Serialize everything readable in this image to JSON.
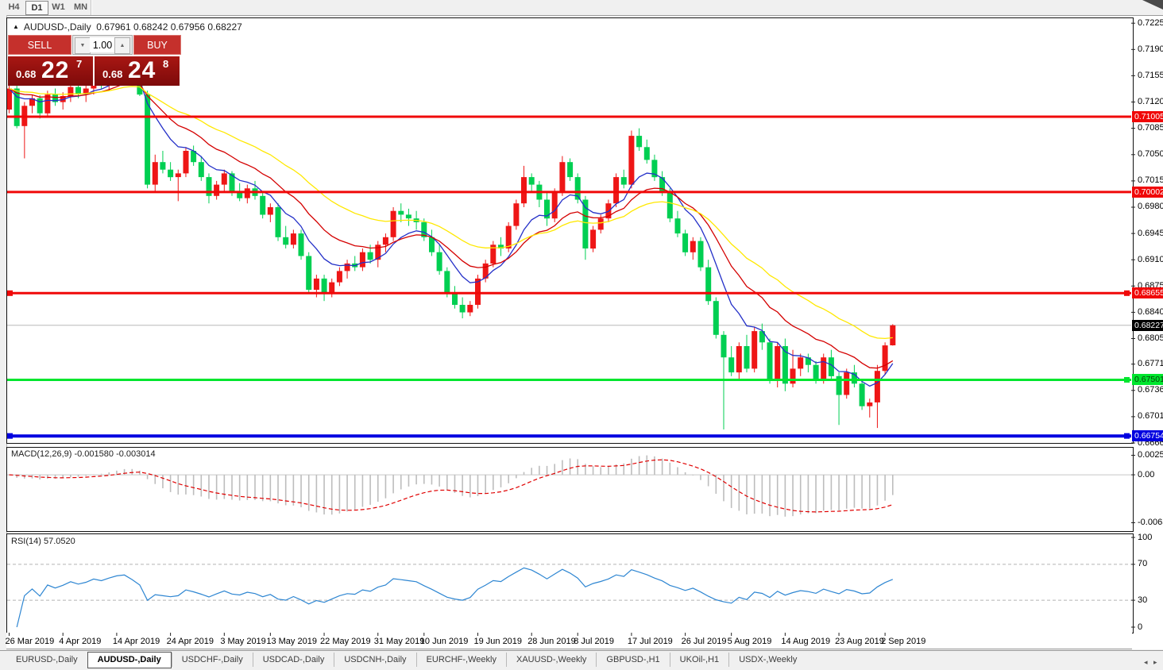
{
  "toolbar": {
    "timeframes": [
      "H4",
      "D1",
      "W1",
      "MN"
    ],
    "active": "D1"
  },
  "title": {
    "collapse_icon": "▲",
    "symbol_period": "AUDUSD-,Daily",
    "ohlc": "0.67961 0.68242 0.67956 0.68227"
  },
  "trade_panel": {
    "sell_label": "SELL",
    "buy_label": "BUY",
    "volume": "1.00",
    "spin_down_icon": "▼",
    "spin_up_icon": "▲",
    "sell_price": {
      "prefix": "0.68",
      "big": "22",
      "sup": "7"
    },
    "buy_price": {
      "prefix": "0.68",
      "big": "24",
      "sup": "8"
    }
  },
  "indicator_labels": {
    "macd": "MACD(12,26,9) -0.001580 -0.003014",
    "rsi": "RSI(14) 57.0520"
  },
  "price_axis": {
    "ticks": [
      0.7225,
      0.719,
      0.7155,
      0.712,
      0.7085,
      0.705,
      0.7015,
      0.698,
      0.6945,
      0.691,
      0.6875,
      0.684,
      0.6805,
      0.6771,
      0.6736,
      0.6701,
      0.6666
    ]
  },
  "macd_axis": {
    "ticks": [
      {
        "label": "0.002574",
        "value": 0.002574
      },
      {
        "label": "0.00",
        "value": 0
      },
      {
        "label": "-0.006326",
        "value": -0.006326
      }
    ]
  },
  "rsi_axis": {
    "ticks": [
      {
        "label": "100",
        "value": 100
      },
      {
        "label": "70",
        "value": 70
      },
      {
        "label": "30",
        "value": 30
      },
      {
        "label": "0",
        "value": 0
      }
    ]
  },
  "date_axis": {
    "labels": [
      {
        "text": "26 Mar 2019",
        "candle": 0
      },
      {
        "text": "4 Apr 2019",
        "candle": 7
      },
      {
        "text": "14 Apr 2019",
        "candle": 14
      },
      {
        "text": "24 Apr 2019",
        "candle": 21
      },
      {
        "text": "3 May 2019",
        "candle": 28
      },
      {
        "text": "13 May 2019",
        "candle": 34
      },
      {
        "text": "22 May 2019",
        "candle": 41
      },
      {
        "text": "31 May 2019",
        "candle": 48
      },
      {
        "text": "10 Jun 2019",
        "candle": 54
      },
      {
        "text": "19 Jun 2019",
        "candle": 61
      },
      {
        "text": "28 Jun 2019",
        "candle": 68
      },
      {
        "text": "8 Jul 2019",
        "candle": 74
      },
      {
        "text": "17 Jul 2019",
        "candle": 81
      },
      {
        "text": "26 Jul 2019",
        "candle": 88
      },
      {
        "text": "5 Aug 2019",
        "candle": 94
      },
      {
        "text": "14 Aug 2019",
        "candle": 101
      },
      {
        "text": "23 Aug 2019",
        "candle": 108
      },
      {
        "text": "2 Sep 2019",
        "candle": 114
      }
    ]
  },
  "levels": {
    "hlines": [
      {
        "label": "0.71005",
        "value": 0.71005,
        "color": "#f00808",
        "badge_bg": "#f00808",
        "badge_fg": "#ffffff",
        "width": 3,
        "handles": []
      },
      {
        "label": "0.70002",
        "value": 0.70002,
        "color": "#f00808",
        "badge_bg": "#f00808",
        "badge_fg": "#ffffff",
        "width": 3,
        "handles": []
      },
      {
        "label": "0.68655",
        "value": 0.68655,
        "color": "#f00808",
        "badge_bg": "#f00808",
        "badge_fg": "#ffffff",
        "width": 3,
        "handles": [
          "left",
          "right"
        ]
      },
      {
        "label": "0.67501",
        "value": 0.67501,
        "color": "#00e62e",
        "badge_bg": "#00e62e",
        "badge_fg": "#063e06",
        "width": 3,
        "handles": [
          "right"
        ]
      },
      {
        "label": "0.66754",
        "value": 0.66754,
        "color": "#0000e0",
        "badge_bg": "#0000e0",
        "badge_fg": "#ffffff",
        "width": 4,
        "handles": [
          "left",
          "right"
        ]
      }
    ],
    "current_price": {
      "label": "0.68227",
      "value": 0.68227,
      "line_color": "#b8b8b8",
      "badge_bg": "#000000",
      "badge_fg": "#ffffff"
    }
  },
  "tabs": {
    "items": [
      "EURUSD-,Daily",
      "AUDUSD-,Daily",
      "USDCHF-,Daily",
      "USDCAD-,Daily",
      "USDCNH-,Daily",
      "EURCHF-,Weekly",
      "XAUUSD-,Weekly",
      "GBPUSD-,H1",
      "UKOil-,H1",
      "USDX-,Weekly"
    ],
    "active": "AUDUSD-,Daily"
  },
  "scrollbar": {
    "left_arrow": "◂",
    "right_arrow": "▸"
  },
  "chart_data": {
    "type": "candlestick",
    "symbol": "AUDUSD-",
    "period": "Daily",
    "ohlc_current": {
      "open": 0.67961,
      "high": 0.68242,
      "low": 0.67956,
      "close": 0.68227
    },
    "bull_color": "#ee1616",
    "bear_color": "#00cf52",
    "ylim": [
      0.6655,
      0.7237
    ],
    "moving_averages": [
      {
        "period": 8,
        "color": "#2430c8",
        "name": "fast"
      },
      {
        "period": 16,
        "color": "#d40000",
        "name": "medium"
      },
      {
        "period": 30,
        "color": "#ffe800",
        "name": "slow"
      }
    ],
    "macd": {
      "fast": 12,
      "slow": 26,
      "signal": 9,
      "current": -0.00158,
      "current_signal": -0.003014,
      "range": [
        -0.006326,
        0.002574
      ],
      "histogram_color": "#bdbdbd",
      "signal_color": "#e00000",
      "zero_line_color": "#c8c8c8"
    },
    "rsi": {
      "period": 14,
      "current": 57.052,
      "levels": [
        70,
        30
      ],
      "range": [
        0,
        100
      ],
      "line_color": "#2e86d2",
      "level_color": "#b4b4b4"
    },
    "candles": [
      [
        0.711,
        0.7142,
        0.7105,
        0.7138
      ],
      [
        0.7138,
        0.7142,
        0.7085,
        0.7088
      ],
      [
        0.7088,
        0.712,
        0.7045,
        0.7115
      ],
      [
        0.7115,
        0.713,
        0.7105,
        0.7125
      ],
      [
        0.7125,
        0.7129,
        0.7098,
        0.7105
      ],
      [
        0.7105,
        0.7135,
        0.71,
        0.713
      ],
      [
        0.713,
        0.7138,
        0.7115,
        0.712
      ],
      [
        0.712,
        0.7133,
        0.711,
        0.7128
      ],
      [
        0.7128,
        0.7145,
        0.712,
        0.714
      ],
      [
        0.714,
        0.715,
        0.7125,
        0.7131
      ],
      [
        0.7131,
        0.7143,
        0.712,
        0.7138
      ],
      [
        0.7138,
        0.7156,
        0.713,
        0.7152
      ],
      [
        0.7152,
        0.716,
        0.7138,
        0.7145
      ],
      [
        0.7145,
        0.7162,
        0.7135,
        0.7158
      ],
      [
        0.7158,
        0.7175,
        0.7148,
        0.717
      ],
      [
        0.717,
        0.718,
        0.7156,
        0.7175
      ],
      [
        0.7175,
        0.718,
        0.715,
        0.7156
      ],
      [
        0.7156,
        0.7165,
        0.7128,
        0.713
      ],
      [
        0.713,
        0.7135,
        0.7005,
        0.701
      ],
      [
        0.701,
        0.705,
        0.7,
        0.704
      ],
      [
        0.704,
        0.7055,
        0.7025,
        0.703
      ],
      [
        0.703,
        0.704,
        0.7015,
        0.702
      ],
      [
        0.702,
        0.703,
        0.6988,
        0.7025
      ],
      [
        0.7025,
        0.706,
        0.702,
        0.7055
      ],
      [
        0.7055,
        0.7062,
        0.7035,
        0.704
      ],
      [
        0.704,
        0.7048,
        0.7015,
        0.702
      ],
      [
        0.702,
        0.7025,
        0.6985,
        0.6995
      ],
      [
        0.6995,
        0.7015,
        0.699,
        0.701
      ],
      [
        0.701,
        0.703,
        0.7,
        0.7025
      ],
      [
        0.7025,
        0.7028,
        0.6995,
        0.7
      ],
      [
        0.7,
        0.7012,
        0.6988,
        0.6992
      ],
      [
        0.6992,
        0.701,
        0.6985,
        0.7005
      ],
      [
        0.7005,
        0.7015,
        0.699,
        0.6995
      ],
      [
        0.6995,
        0.7,
        0.6965,
        0.697
      ],
      [
        0.697,
        0.6985,
        0.696,
        0.698
      ],
      [
        0.698,
        0.6985,
        0.6935,
        0.694
      ],
      [
        0.694,
        0.6955,
        0.6925,
        0.693
      ],
      [
        0.693,
        0.695,
        0.6925,
        0.6945
      ],
      [
        0.6945,
        0.695,
        0.691,
        0.6915
      ],
      [
        0.6915,
        0.692,
        0.6865,
        0.687
      ],
      [
        0.687,
        0.689,
        0.686,
        0.6885
      ],
      [
        0.6885,
        0.689,
        0.6855,
        0.6865
      ],
      [
        0.6865,
        0.6885,
        0.686,
        0.688
      ],
      [
        0.688,
        0.69,
        0.6875,
        0.6895
      ],
      [
        0.6895,
        0.691,
        0.6885,
        0.6905
      ],
      [
        0.6905,
        0.6915,
        0.6895,
        0.69
      ],
      [
        0.69,
        0.6925,
        0.6895,
        0.692
      ],
      [
        0.692,
        0.693,
        0.6905,
        0.691
      ],
      [
        0.691,
        0.6935,
        0.69,
        0.693
      ],
      [
        0.693,
        0.6945,
        0.692,
        0.694
      ],
      [
        0.694,
        0.698,
        0.6935,
        0.6975
      ],
      [
        0.6975,
        0.6985,
        0.696,
        0.697
      ],
      [
        0.697,
        0.6978,
        0.6955,
        0.6965
      ],
      [
        0.6965,
        0.6975,
        0.695,
        0.696
      ],
      [
        0.696,
        0.6965,
        0.6935,
        0.694
      ],
      [
        0.694,
        0.695,
        0.6915,
        0.692
      ],
      [
        0.692,
        0.693,
        0.689,
        0.6895
      ],
      [
        0.6895,
        0.69,
        0.686,
        0.6865
      ],
      [
        0.6865,
        0.6875,
        0.6845,
        0.685
      ],
      [
        0.685,
        0.686,
        0.6832,
        0.684
      ],
      [
        0.684,
        0.6855,
        0.6835,
        0.685
      ],
      [
        0.685,
        0.689,
        0.6845,
        0.6885
      ],
      [
        0.6885,
        0.691,
        0.688,
        0.6905
      ],
      [
        0.6905,
        0.6935,
        0.69,
        0.693
      ],
      [
        0.693,
        0.694,
        0.6915,
        0.6925
      ],
      [
        0.6925,
        0.696,
        0.692,
        0.6955
      ],
      [
        0.6955,
        0.699,
        0.695,
        0.6985
      ],
      [
        0.6985,
        0.7035,
        0.698,
        0.702
      ],
      [
        0.702,
        0.7025,
        0.7,
        0.701
      ],
      [
        0.701,
        0.7015,
        0.698,
        0.699
      ],
      [
        0.699,
        0.7,
        0.6955,
        0.6965
      ],
      [
        0.6965,
        0.7005,
        0.696,
        0.7
      ],
      [
        0.7,
        0.7048,
        0.6995,
        0.704
      ],
      [
        0.704,
        0.7045,
        0.7015,
        0.702
      ],
      [
        0.702,
        0.7025,
        0.6985,
        0.699
      ],
      [
        0.699,
        0.6995,
        0.691,
        0.6925
      ],
      [
        0.6925,
        0.6955,
        0.692,
        0.695
      ],
      [
        0.695,
        0.697,
        0.6945,
        0.6965
      ],
      [
        0.6965,
        0.699,
        0.696,
        0.6985
      ],
      [
        0.6985,
        0.7025,
        0.698,
        0.702
      ],
      [
        0.702,
        0.703,
        0.7005,
        0.701
      ],
      [
        0.701,
        0.7082,
        0.7005,
        0.7075
      ],
      [
        0.7075,
        0.7085,
        0.7055,
        0.706
      ],
      [
        0.706,
        0.707,
        0.7038,
        0.7043
      ],
      [
        0.7043,
        0.705,
        0.7015,
        0.702
      ],
      [
        0.702,
        0.7028,
        0.6995,
        0.7
      ],
      [
        0.7,
        0.7005,
        0.696,
        0.6965
      ],
      [
        0.6965,
        0.6975,
        0.694,
        0.6945
      ],
      [
        0.6945,
        0.695,
        0.6915,
        0.692
      ],
      [
        0.692,
        0.694,
        0.691,
        0.6935
      ],
      [
        0.6935,
        0.694,
        0.6895,
        0.69
      ],
      [
        0.69,
        0.691,
        0.685,
        0.6855
      ],
      [
        0.6855,
        0.686,
        0.6805,
        0.681
      ],
      [
        0.681,
        0.6815,
        0.6684,
        0.678
      ],
      [
        0.678,
        0.6795,
        0.6755,
        0.676
      ],
      [
        0.676,
        0.68,
        0.675,
        0.6795
      ],
      [
        0.6795,
        0.681,
        0.676,
        0.6765
      ],
      [
        0.6765,
        0.682,
        0.676,
        0.6815
      ],
      [
        0.6815,
        0.6825,
        0.679,
        0.68
      ],
      [
        0.68,
        0.6805,
        0.6745,
        0.675
      ],
      [
        0.675,
        0.68,
        0.674,
        0.6795
      ],
      [
        0.6795,
        0.6805,
        0.6735,
        0.6745
      ],
      [
        0.6745,
        0.679,
        0.674,
        0.6765
      ],
      [
        0.6765,
        0.6785,
        0.6755,
        0.678
      ],
      [
        0.678,
        0.6785,
        0.676,
        0.677
      ],
      [
        0.677,
        0.6775,
        0.6745,
        0.675
      ],
      [
        0.675,
        0.6785,
        0.6745,
        0.678
      ],
      [
        0.678,
        0.679,
        0.675,
        0.6755
      ],
      [
        0.6755,
        0.676,
        0.669,
        0.673
      ],
      [
        0.673,
        0.6765,
        0.6725,
        0.676
      ],
      [
        0.676,
        0.677,
        0.674,
        0.6745
      ],
      [
        0.6745,
        0.675,
        0.671,
        0.6715
      ],
      [
        0.6715,
        0.6725,
        0.67,
        0.672
      ],
      [
        0.672,
        0.677,
        0.6686,
        0.6762
      ],
      [
        0.6762,
        0.68,
        0.6757,
        0.6796
      ],
      [
        0.67961,
        0.68242,
        0.67956,
        0.68227
      ]
    ]
  }
}
